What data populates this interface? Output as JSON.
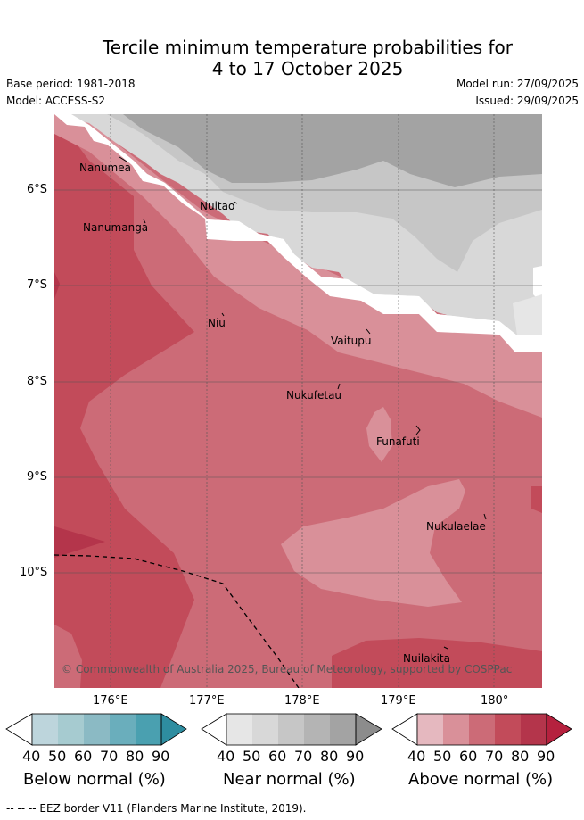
{
  "title_line1": "Tercile minimum temperature probabilities for",
  "title_line2": "4 to 17 October 2025",
  "base_period": "Base period: 1981-2018",
  "model": "Model: ACCESS-S2",
  "model_run": "Model run: 27/09/2025",
  "issued": "Issued: 29/09/2025",
  "lat_labels": [
    "6°S",
    "7°S",
    "8°S",
    "9°S",
    "10°S"
  ],
  "lon_labels": [
    "176°E",
    "177°E",
    "178°E",
    "179°E",
    "180°"
  ],
  "places": {
    "nanumea": "Nanumea",
    "nuitao": "Nuitao",
    "nanumanga": "Nanumanga",
    "niu": "Niu",
    "vaitupu": "Vaitupu",
    "nukufetau": "Nukufetau",
    "funafuti": "Funafuti",
    "nukulaelae": "Nukulaelae",
    "nuilakita": "Nuilakita"
  },
  "copyright": "© Commonwealth of Australia 2025, Bureau of Meteorology, supported by COSPPac",
  "colorbars": {
    "ticks": [
      "40",
      "50",
      "60",
      "70",
      "80",
      "90"
    ],
    "below": {
      "title": "Below normal (%)",
      "colors": [
        "#bdd5dc",
        "#a6cbd0",
        "#8bbac4",
        "#6aaebc",
        "#4aa0b0",
        "#2e8da0"
      ]
    },
    "near": {
      "title": "Near normal (%)",
      "colors": [
        "#e6e6e6",
        "#d8d8d8",
        "#c6c6c6",
        "#b4b4b4",
        "#a3a3a3",
        "#8c8c8c"
      ]
    },
    "above": {
      "title": "Above normal (%)",
      "colors": [
        "#e5b8bf",
        "#d99099",
        "#cc6b77",
        "#c24b5a",
        "#b4354b",
        "#b5213e"
      ]
    }
  },
  "footnote": "--  --  -- EEZ border V11 (Flanders Marine Institute, 2019)."
}
